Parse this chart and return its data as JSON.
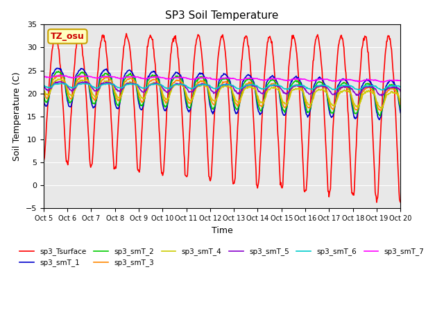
{
  "title": "SP3 Soil Temperature",
  "xlabel": "Time",
  "ylabel": "Soil Temperature (C)",
  "ylim": [
    -5,
    35
  ],
  "yticks": [
    -5,
    0,
    5,
    10,
    15,
    20,
    25,
    30,
    35
  ],
  "xtick_labels": [
    "Oct 5",
    "Oct 6",
    "Oct 7",
    "Oct 8",
    "Oct 9",
    "Oct 10",
    "Oct 11",
    "Oct 12",
    "Oct 13",
    "Oct 14",
    "Oct 15",
    "Oct 16",
    "Oct 17",
    "Oct 18",
    "Oct 19",
    "Oct 20"
  ],
  "annotation": "TZ_osu",
  "annotation_bg": "#FFFFC0",
  "annotation_border": "#C8A000",
  "series_colors": {
    "sp3_Tsurface": "#FF0000",
    "sp3_smT_1": "#0000CC",
    "sp3_smT_2": "#00CC00",
    "sp3_smT_3": "#FF8800",
    "sp3_smT_4": "#CCCC00",
    "sp3_smT_5": "#8800CC",
    "sp3_smT_6": "#00CCCC",
    "sp3_smT_7": "#FF00FF"
  },
  "background_color": "#E8E8E8",
  "n_days": 15,
  "points_per_day": 48
}
